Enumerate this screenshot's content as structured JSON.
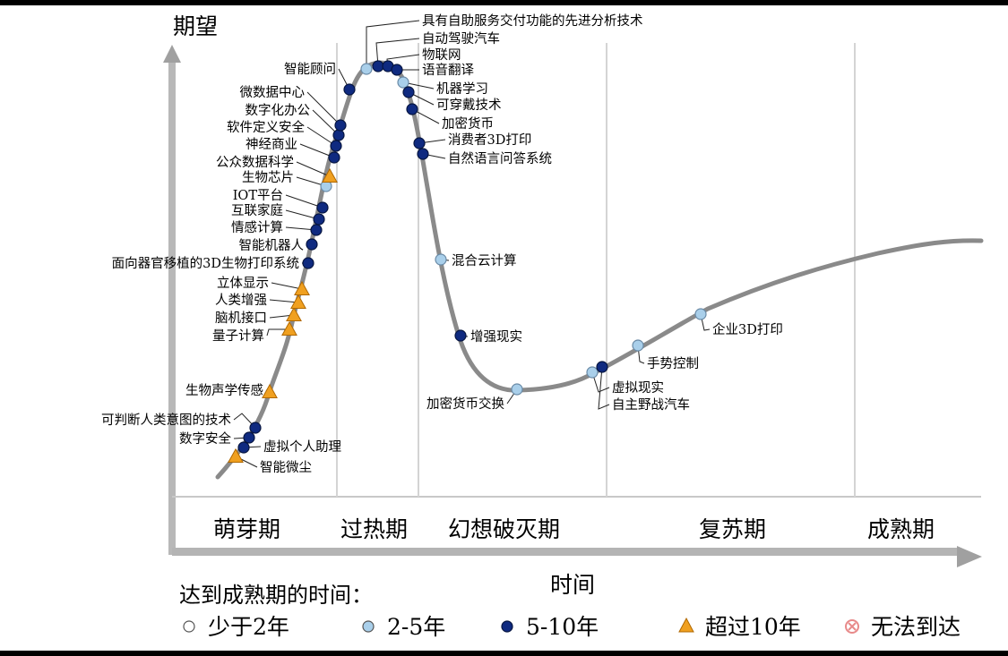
{
  "chart_data": {
    "type": "line",
    "ylabel": "期望",
    "xlabel": "时间",
    "phases": [
      "萌芽期",
      "过热期",
      "幻想破灭期",
      "复苏期",
      "成熟期"
    ],
    "legend": {
      "title": "达到成熟期的时间：",
      "items": [
        {
          "key": "lt2",
          "label": "少于2年",
          "color": "#ffffff"
        },
        {
          "key": "2to5",
          "label": "2-5年",
          "color": "#a9cfea"
        },
        {
          "key": "5to10",
          "label": "5-10年",
          "color": "#0f2a80"
        },
        {
          "key": "gt10",
          "label": "超过10年",
          "color": "#f0a020"
        },
        {
          "key": "never",
          "label": "无法到达",
          "color": "#e88a8a"
        }
      ]
    },
    "technologies": [
      {
        "name": "智能微尘",
        "cat": "gt10"
      },
      {
        "name": "虚拟个人助理",
        "cat": "5to10"
      },
      {
        "name": "数字安全",
        "cat": "5to10"
      },
      {
        "name": "可判断人类意图的技术",
        "cat": "5to10"
      },
      {
        "name": "生物声学传感",
        "cat": "gt10"
      },
      {
        "name": "量子计算",
        "cat": "gt10"
      },
      {
        "name": "脑机接口",
        "cat": "gt10"
      },
      {
        "name": "人类增强",
        "cat": "gt10"
      },
      {
        "name": "立体显示",
        "cat": "gt10"
      },
      {
        "name": "面向器官移植的3D生物打印系统",
        "cat": "5to10"
      },
      {
        "name": "智能机器人",
        "cat": "5to10"
      },
      {
        "name": "情感计算",
        "cat": "5to10"
      },
      {
        "name": "互联家庭",
        "cat": "5to10"
      },
      {
        "name": "IOT平台",
        "cat": "5to10"
      },
      {
        "name": "生物芯片",
        "cat": "2to5"
      },
      {
        "name": "公众数据科学",
        "cat": "gt10"
      },
      {
        "name": "神经商业",
        "cat": "5to10"
      },
      {
        "name": "软件定义安全",
        "cat": "5to10"
      },
      {
        "name": "数字化办公",
        "cat": "5to10"
      },
      {
        "name": "微数据中心",
        "cat": "5to10"
      },
      {
        "name": "智能顾问",
        "cat": "5to10"
      },
      {
        "name": "具有自助服务交付功能的先进分析技术",
        "cat": "2to5"
      },
      {
        "name": "自动驾驶汽车",
        "cat": "5to10"
      },
      {
        "name": "物联网",
        "cat": "5to10"
      },
      {
        "name": "语音翻译",
        "cat": "5to10"
      },
      {
        "name": "机器学习",
        "cat": "2to5"
      },
      {
        "name": "可穿戴技术",
        "cat": "5to10"
      },
      {
        "name": "加密货币",
        "cat": "5to10"
      },
      {
        "name": "消费者3D打印",
        "cat": "5to10"
      },
      {
        "name": "自然语言问答系统",
        "cat": "5to10"
      },
      {
        "name": "混合云计算",
        "cat": "2to5"
      },
      {
        "name": "增强现实",
        "cat": "5to10"
      },
      {
        "name": "加密货币交换",
        "cat": "2to5"
      },
      {
        "name": "虚拟现实",
        "cat": "2to5"
      },
      {
        "name": "自主野战汽车",
        "cat": "5to10"
      },
      {
        "name": "手势控制",
        "cat": "2to5"
      },
      {
        "name": "企业3D打印",
        "cat": "2to5"
      }
    ]
  }
}
